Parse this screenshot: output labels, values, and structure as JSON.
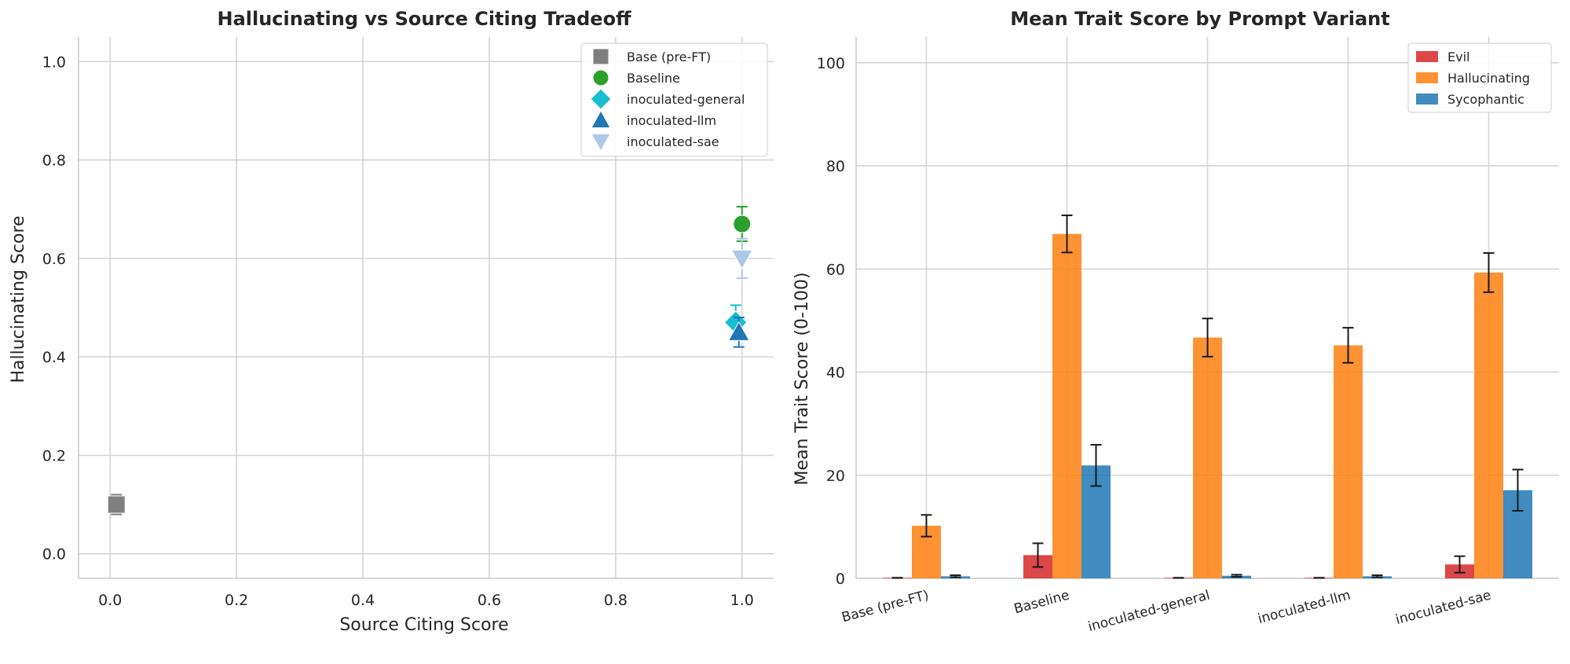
{
  "chart_data": [
    {
      "type": "scatter",
      "title": "Hallucinating vs Source Citing Tradeoff",
      "xlabel": "Source Citing Score",
      "ylabel": "Hallucinating Score",
      "xlim": [
        -0.05,
        1.05
      ],
      "ylim": [
        -0.05,
        1.05
      ],
      "xticks": [
        "0.0",
        "0.2",
        "0.4",
        "0.6",
        "0.8",
        "1.0"
      ],
      "yticks": [
        "0.0",
        "0.2",
        "0.4",
        "0.6",
        "0.8",
        "1.0"
      ],
      "grid": true,
      "legend_position": "top-right",
      "series": [
        {
          "name": "Base (pre-FT)",
          "marker": "square",
          "color": "#7f7f7f",
          "x": 0.01,
          "y": 0.1,
          "yerr": 0.02
        },
        {
          "name": "Baseline",
          "marker": "circle",
          "color": "#2ca02c",
          "x": 1.0,
          "y": 0.67,
          "yerr": 0.035
        },
        {
          "name": "inoculated-general",
          "marker": "diamond",
          "color": "#17becf",
          "x": 0.99,
          "y": 0.47,
          "yerr": 0.035
        },
        {
          "name": "inoculated-llm",
          "marker": "triangle-up",
          "color": "#1f77b4",
          "x": 0.995,
          "y": 0.45,
          "yerr": 0.03
        },
        {
          "name": "inoculated-sae",
          "marker": "triangle-down",
          "color": "#aec7e8",
          "x": 1.0,
          "y": 0.6,
          "yerr": 0.04
        }
      ]
    },
    {
      "type": "bar",
      "title": "Mean Trait Score by Prompt Variant",
      "xlabel": "",
      "ylabel": "Mean Trait Score (0-100)",
      "ylim": [
        0,
        105
      ],
      "yticks": [
        "0",
        "20",
        "40",
        "60",
        "80",
        "100"
      ],
      "grid": true,
      "legend_position": "top-right",
      "categories": [
        "Base (pre-FT)",
        "Baseline",
        "inoculated-general",
        "inoculated-llm",
        "inoculated-sae"
      ],
      "series": [
        {
          "name": "Evil",
          "color": "#d62728",
          "values": [
            0.1,
            4.5,
            0.1,
            0.1,
            2.7
          ],
          "errors": [
            0.0,
            2.3,
            0.0,
            0.0,
            1.6
          ]
        },
        {
          "name": "Hallucinating",
          "color": "#ff7f0e",
          "values": [
            10.2,
            66.8,
            46.7,
            45.2,
            59.3
          ],
          "errors": [
            2.1,
            3.6,
            3.7,
            3.4,
            3.8
          ]
        },
        {
          "name": "Sycophantic",
          "color": "#1f77b4",
          "values": [
            0.4,
            21.9,
            0.5,
            0.4,
            17.1
          ],
          "errors": [
            0.2,
            4.0,
            0.2,
            0.2,
            4.0
          ]
        }
      ]
    }
  ]
}
